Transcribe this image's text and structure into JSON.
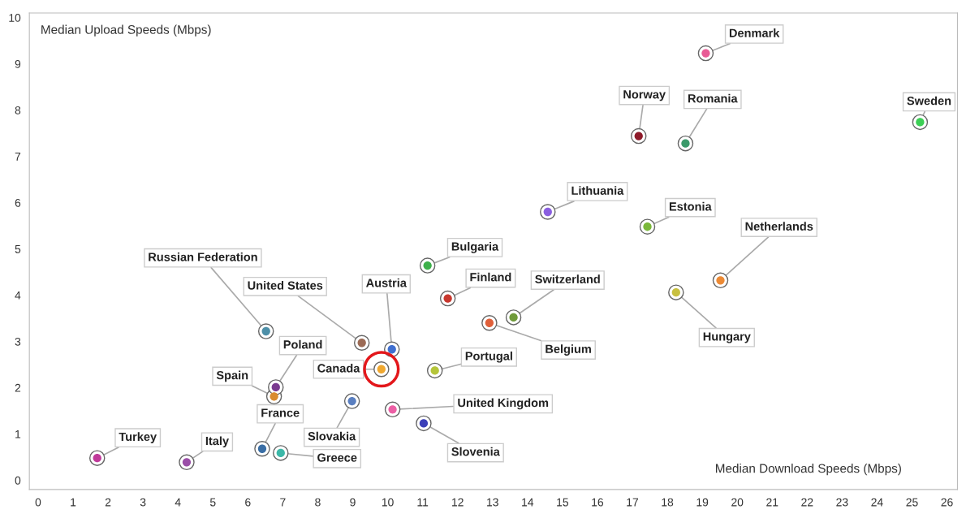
{
  "chart_data": {
    "type": "scatter",
    "xlabel": "Median Download Speeds (Mbps)",
    "ylabel": "Median Upload Speeds (Mbps)",
    "xlim": [
      -0.25,
      26.3
    ],
    "ylim": [
      -0.2,
      10.1
    ],
    "xticks": [
      0,
      1,
      2,
      3,
      4,
      5,
      6,
      7,
      8,
      9,
      10,
      11,
      12,
      13,
      14,
      15,
      16,
      17,
      18,
      19,
      20,
      21,
      22,
      23,
      24,
      25,
      26
    ],
    "yticks": [
      0,
      1,
      2,
      3,
      4,
      5,
      6,
      7,
      8,
      9,
      10
    ],
    "grid": false,
    "legend": false,
    "marker": "circle",
    "series": [
      {
        "x": [
          1.69,
          4.25,
          6.41,
          6.94,
          6.75,
          6.8,
          6.52,
          9.26,
          9.82,
          10.12,
          8.98,
          10.14,
          11.03,
          11.35,
          11.14,
          11.72,
          12.91,
          13.6,
          14.58,
          17.18,
          17.43,
          18.52,
          19.1,
          18.25,
          19.52,
          25.23
        ],
        "values": [
          0.48,
          0.39,
          0.68,
          0.59,
          1.81,
          2.01,
          3.22,
          2.97,
          2.4,
          2.83,
          1.71,
          1.53,
          1.23,
          2.37,
          4.64,
          3.93,
          3.4,
          3.52,
          5.8,
          7.44,
          5.48,
          7.28,
          9.23,
          4.06,
          4.32,
          7.74
        ],
        "colors": [
          "#c0399a",
          "#9b4fa8",
          "#3a6ea5",
          "#3cb8a8",
          "#d98b2e",
          "#7a3b8f",
          "#4d8fa8",
          "#9c6b55",
          "#f0a830",
          "#3f6fd0",
          "#5a7fc0",
          "#ec5fa5",
          "#3b3fb8",
          "#b5c53a",
          "#3db04a",
          "#c8382e",
          "#e0603a",
          "#6f9a3a",
          "#8a5fe0",
          "#8e1b2a",
          "#7ab83a",
          "#3a9a6a",
          "#e85a95",
          "#c8c040",
          "#ec8a35",
          "#3ccf55"
        ]
      },
      {
        "type": "scatter",
        "x": [
          9.82
        ],
        "values": [
          2.4
        ],
        "color": "#e3171b",
        "marker": "circle"
      }
    ],
    "annotations": [
      {
        "text": "Turkey",
        "x": 1.69,
        "y": 0.48
      },
      {
        "text": "Italy",
        "x": 4.25,
        "y": 0.39
      },
      {
        "text": "France",
        "x": 6.41,
        "y": 0.68
      },
      {
        "text": "Greece",
        "x": 6.94,
        "y": 0.59
      },
      {
        "text": "Spain",
        "x": 6.75,
        "y": 1.81
      },
      {
        "text": "Poland",
        "x": 6.8,
        "y": 2.01
      },
      {
        "text": "Russian Federation",
        "x": 6.52,
        "y": 3.22
      },
      {
        "text": "United States",
        "x": 9.26,
        "y": 2.97
      },
      {
        "text": "Canada",
        "x": 9.82,
        "y": 2.4
      },
      {
        "text": "Austria",
        "x": 10.12,
        "y": 2.83
      },
      {
        "text": "Slovakia",
        "x": 8.98,
        "y": 1.71
      },
      {
        "text": "United Kingdom",
        "x": 10.14,
        "y": 1.53
      },
      {
        "text": "Slovenia",
        "x": 11.03,
        "y": 1.23
      },
      {
        "text": "Portugal",
        "x": 11.35,
        "y": 2.37
      },
      {
        "text": "Bulgaria",
        "x": 11.14,
        "y": 4.64
      },
      {
        "text": "Finland",
        "x": 11.72,
        "y": 3.93
      },
      {
        "text": "Belgium",
        "x": 12.91,
        "y": 3.4
      },
      {
        "text": "Switzerland",
        "x": 13.6,
        "y": 3.52
      },
      {
        "text": "Lithuania",
        "x": 14.58,
        "y": 5.8
      },
      {
        "text": "Norway",
        "x": 17.18,
        "y": 7.44
      },
      {
        "text": "Estonia",
        "x": 17.43,
        "y": 5.48
      },
      {
        "text": "Romania",
        "x": 18.52,
        "y": 7.28
      },
      {
        "text": "Denmark",
        "x": 19.1,
        "y": 9.23
      },
      {
        "text": "Hungary",
        "x": 18.25,
        "y": 4.06
      },
      {
        "text": "Netherlands",
        "x": 19.52,
        "y": 4.32
      },
      {
        "text": "Sweden",
        "x": 25.23,
        "y": 7.74
      }
    ]
  }
}
